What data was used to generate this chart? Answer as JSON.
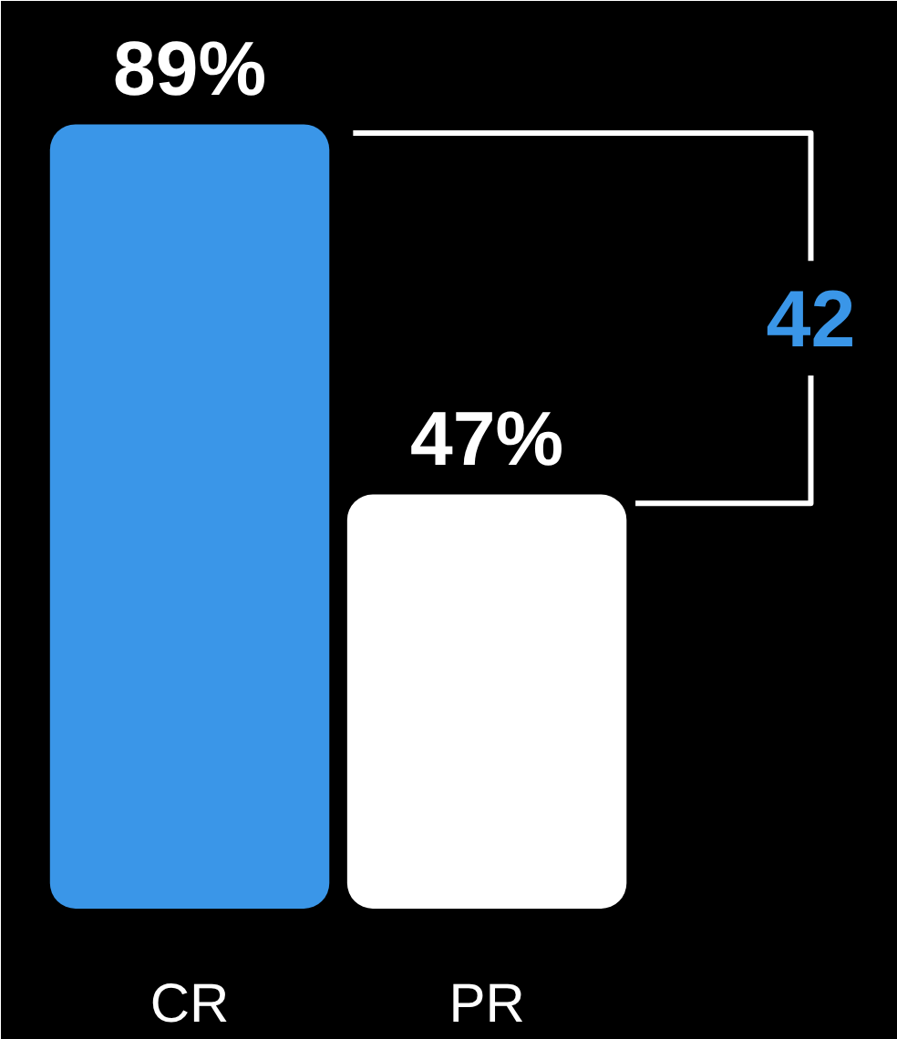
{
  "chart_data": {
    "type": "bar",
    "categories": [
      "CR",
      "PR"
    ],
    "values": [
      89,
      47
    ],
    "colors": [
      "#3a96e8",
      "#ffffff"
    ],
    "value_labels": [
      "89%",
      "47%"
    ],
    "ylim": [
      0,
      103
    ],
    "annotations": [
      "42"
    ],
    "grid": false
  }
}
